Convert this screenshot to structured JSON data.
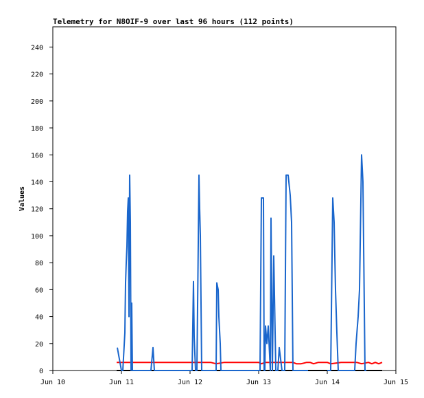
{
  "chart_data": {
    "type": "line",
    "title": "Telemetry for N8OIF-9 over last 96 hours (112 points)",
    "xlabel": "",
    "ylabel": "Values",
    "x_unit": "day",
    "xlim": [
      10,
      15
    ],
    "ylim": [
      0,
      255
    ],
    "x_ticks": [
      {
        "value": 10,
        "label": "Jun 10"
      },
      {
        "value": 11,
        "label": "Jun 11"
      },
      {
        "value": 12,
        "label": "Jun 12"
      },
      {
        "value": 13,
        "label": "Jun 13"
      },
      {
        "value": 14,
        "label": "Jun 14"
      },
      {
        "value": 15,
        "label": "Jun 15"
      }
    ],
    "y_ticks": [
      0,
      20,
      40,
      60,
      80,
      100,
      120,
      140,
      160,
      180,
      200,
      220,
      240
    ],
    "grid": false,
    "legend": "none",
    "series": [
      {
        "color": "#000000",
        "x": [
          10.93,
          14.8
        ],
        "values": [
          0,
          0
        ]
      },
      {
        "color": "#ff0000",
        "x": [
          10.93,
          11.5,
          12.0,
          12.3,
          12.38,
          12.5,
          13.0,
          13.04,
          13.1,
          13.5,
          13.55,
          13.62,
          13.7,
          13.75,
          13.8,
          13.87,
          14.0,
          14.05,
          14.2,
          14.35,
          14.43,
          14.5,
          14.6,
          14.65,
          14.7,
          14.75,
          14.8
        ],
        "values": [
          6,
          6,
          6,
          6,
          5,
          6,
          6,
          5,
          6,
          6,
          5,
          5,
          6,
          6,
          5,
          6,
          6,
          5,
          6,
          6,
          6,
          5,
          6,
          5,
          6,
          5,
          6
        ]
      },
      {
        "color": "#1a66cc",
        "x": [
          10.94,
          11.0,
          11.02,
          11.05,
          11.06,
          11.07,
          11.08,
          11.09,
          11.1,
          11.11,
          11.12,
          11.13,
          11.14,
          11.15,
          11.16,
          11.17,
          11.18,
          11.19,
          11.2,
          11.21,
          11.22,
          11.23,
          11.24,
          11.25,
          11.43,
          11.46,
          11.48,
          11.5,
          12.03,
          12.05,
          12.06,
          12.08,
          12.1,
          12.12,
          12.13,
          12.14,
          12.15,
          12.17,
          12.18,
          12.19,
          12.2,
          12.21,
          12.33,
          12.38,
          12.39,
          12.41,
          12.42,
          12.44,
          12.45,
          12.47,
          12.48,
          12.5,
          12.63,
          12.67,
          12.7,
          12.73,
          12.8,
          12.87,
          12.93,
          12.95,
          12.99,
          13.0,
          13.02,
          13.04,
          13.05,
          13.06,
          13.07,
          13.08,
          13.09,
          13.1,
          13.12,
          13.14,
          13.17,
          13.18,
          13.2,
          13.22,
          13.25,
          13.28,
          13.3,
          13.34,
          13.36,
          13.38,
          13.4,
          13.43,
          13.46,
          13.48,
          13.5,
          13.53,
          13.56,
          13.59,
          13.62,
          13.65,
          13.68,
          13.7,
          13.72
        ],
        "values": [
          17,
          0,
          0,
          28,
          65,
          80,
          92,
          118,
          128,
          40,
          145,
          110,
          0,
          50,
          0,
          0,
          0,
          0,
          0,
          0,
          0,
          0,
          0,
          0,
          0,
          17,
          0,
          0,
          0,
          66,
          25,
          0,
          0,
          95,
          145,
          120,
          100,
          0,
          0,
          0,
          0,
          0,
          0,
          0,
          65,
          60,
          40,
          20,
          0,
          0,
          0,
          0,
          0,
          0,
          0,
          0,
          0,
          0,
          0,
          0,
          0,
          0,
          0,
          128,
          128,
          128,
          128,
          0,
          0,
          33,
          20,
          33,
          0,
          113,
          0,
          85,
          0,
          0,
          17,
          0,
          0,
          0,
          145,
          145,
          130,
          110,
          0,
          0,
          0,
          0,
          0,
          0,
          0,
          0,
          0
        ]
      },
      {
        "color": "#1a66cc",
        "x": [
          14.0,
          14.05,
          14.08,
          14.1,
          14.12,
          14.14,
          14.16,
          14.18,
          14.2,
          14.22,
          14.25,
          14.3,
          14.35,
          14.38,
          14.4,
          14.42,
          14.45,
          14.47,
          14.5,
          14.52,
          14.55,
          14.57
        ],
        "values": [
          0,
          0,
          128,
          110,
          60,
          28,
          0,
          0,
          0,
          0,
          0,
          0,
          0,
          0,
          0,
          20,
          40,
          60,
          160,
          140,
          0,
          0
        ]
      }
    ]
  }
}
